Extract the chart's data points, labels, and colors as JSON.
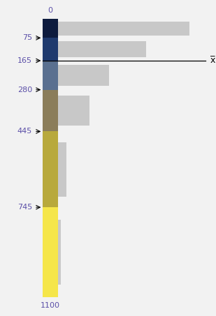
{
  "bin_edges": [
    0,
    75,
    165,
    280,
    445,
    745,
    1100
  ],
  "bar_counts": [
    270,
    180,
    105,
    65,
    18,
    6
  ],
  "bar_colors": [
    "#0d1b3e",
    "#1f3a6e",
    "#5a7090",
    "#8b7d5a",
    "#b8a93c",
    "#f5e64a"
  ],
  "bar_gray": "#c8c8c8",
  "background_color": "#f2f2f2",
  "label_color": "#5b4fa8",
  "mean_bin_index": 1,
  "mean_label": "x̅",
  "figsize": [
    3.09,
    4.53
  ],
  "dpi": 100
}
